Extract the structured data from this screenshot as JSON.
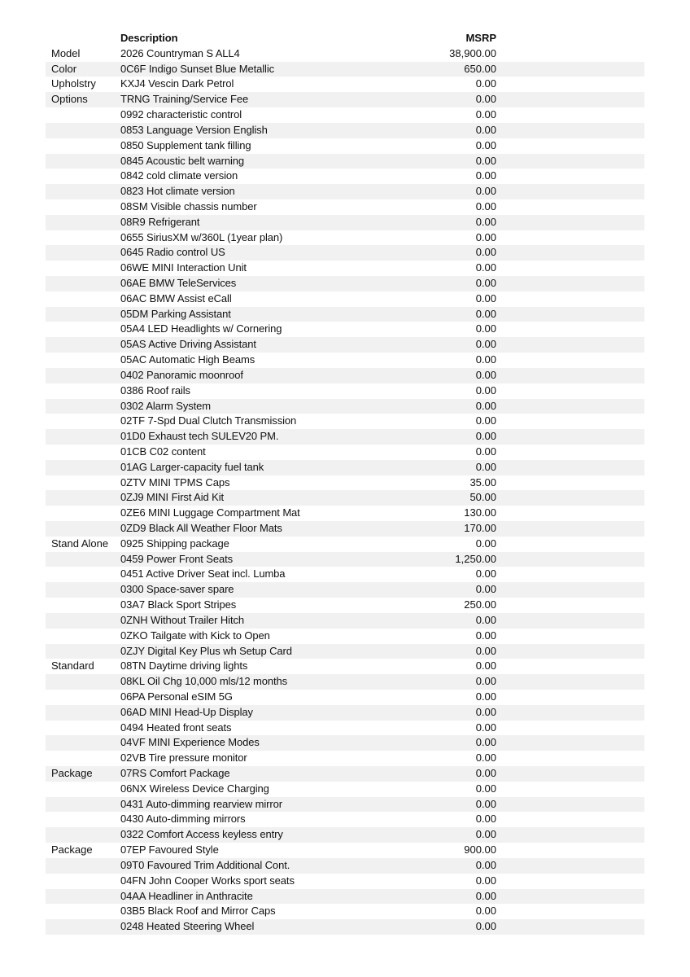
{
  "header": {
    "description": "Description",
    "msrp": "MSRP"
  },
  "rows": [
    {
      "label": "Model",
      "description": "2026 Countryman S ALL4",
      "msrp": "38,900.00"
    },
    {
      "label": "Color",
      "description": "0C6F Indigo Sunset Blue Metallic",
      "msrp": "650.00"
    },
    {
      "label": "Upholstry",
      "description": "KXJ4 Vescin Dark Petrol",
      "msrp": "0.00"
    },
    {
      "label": "Options",
      "description": "TRNG Training/Service Fee",
      "msrp": "0.00"
    },
    {
      "label": "",
      "description": "0992 characteristic control",
      "msrp": "0.00"
    },
    {
      "label": "",
      "description": "0853 Language Version English",
      "msrp": "0.00"
    },
    {
      "label": "",
      "description": "0850 Supplement tank filling",
      "msrp": "0.00"
    },
    {
      "label": "",
      "description": "0845 Acoustic belt warning",
      "msrp": "0.00"
    },
    {
      "label": "",
      "description": "0842 cold climate version",
      "msrp": "0.00"
    },
    {
      "label": "",
      "description": "0823 Hot climate version",
      "msrp": "0.00"
    },
    {
      "label": "",
      "description": "08SM Visible chassis number",
      "msrp": "0.00"
    },
    {
      "label": "",
      "description": "08R9 Refrigerant",
      "msrp": "0.00"
    },
    {
      "label": "",
      "description": "0655 SiriusXM w/360L (1year plan)",
      "msrp": "0.00"
    },
    {
      "label": "",
      "description": "0645 Radio control US",
      "msrp": "0.00"
    },
    {
      "label": "",
      "description": "06WE MINI Interaction Unit",
      "msrp": "0.00"
    },
    {
      "label": "",
      "description": "06AE BMW TeleServices",
      "msrp": "0.00"
    },
    {
      "label": "",
      "description": "06AC BMW Assist eCall",
      "msrp": "0.00"
    },
    {
      "label": "",
      "description": "05DM Parking Assistant",
      "msrp": "0.00"
    },
    {
      "label": "",
      "description": "05A4 LED Headlights w/ Cornering",
      "msrp": "0.00"
    },
    {
      "label": "",
      "description": "05AS Active Driving Assistant",
      "msrp": "0.00"
    },
    {
      "label": "",
      "description": "05AC Automatic High Beams",
      "msrp": "0.00"
    },
    {
      "label": "",
      "description": "0402 Panoramic moonroof",
      "msrp": "0.00"
    },
    {
      "label": "",
      "description": "0386 Roof rails",
      "msrp": "0.00"
    },
    {
      "label": "",
      "description": "0302 Alarm System",
      "msrp": "0.00"
    },
    {
      "label": "",
      "description": "02TF 7-Spd Dual Clutch Transmission",
      "msrp": "0.00"
    },
    {
      "label": "",
      "description": "01D0 Exhaust tech SULEV20 PM.",
      "msrp": "0.00"
    },
    {
      "label": "",
      "description": "01CB C02 content",
      "msrp": "0.00"
    },
    {
      "label": "",
      "description": "01AG Larger-capacity fuel tank",
      "msrp": "0.00"
    },
    {
      "label": "",
      "description": "0ZTV MINI TPMS Caps",
      "msrp": "35.00"
    },
    {
      "label": "",
      "description": "0ZJ9 MINI First Aid Kit",
      "msrp": "50.00"
    },
    {
      "label": "",
      "description": "0ZE6 MINI Luggage Compartment Mat",
      "msrp": "130.00"
    },
    {
      "label": "",
      "description": "0ZD9 Black All Weather Floor Mats",
      "msrp": "170.00"
    },
    {
      "label": "Stand Alone",
      "description": "0925 Shipping package",
      "msrp": "0.00"
    },
    {
      "label": "",
      "description": "0459 Power Front Seats",
      "msrp": "1,250.00"
    },
    {
      "label": "",
      "description": "0451 Active Driver Seat incl. Lumba",
      "msrp": "0.00"
    },
    {
      "label": "",
      "description": "0300 Space-saver spare",
      "msrp": "0.00"
    },
    {
      "label": "",
      "description": "03A7 Black Sport Stripes",
      "msrp": "250.00"
    },
    {
      "label": "",
      "description": "0ZNH Without Trailer Hitch",
      "msrp": "0.00"
    },
    {
      "label": "",
      "description": "0ZKO Tailgate with Kick to Open",
      "msrp": "0.00"
    },
    {
      "label": "",
      "description": "0ZJY Digital Key Plus wh Setup Card",
      "msrp": "0.00"
    },
    {
      "label": "Standard",
      "description": "08TN Daytime driving lights",
      "msrp": "0.00"
    },
    {
      "label": "",
      "description": "08KL Oil Chg 10,000 mls/12 months",
      "msrp": "0.00"
    },
    {
      "label": "",
      "description": "06PA Personal eSIM 5G",
      "msrp": "0.00"
    },
    {
      "label": "",
      "description": "06AD MINI Head-Up Display",
      "msrp": "0.00"
    },
    {
      "label": "",
      "description": "0494 Heated front seats",
      "msrp": "0.00"
    },
    {
      "label": "",
      "description": "04VF MINI Experience Modes",
      "msrp": "0.00"
    },
    {
      "label": "",
      "description": "02VB Tire pressure monitor",
      "msrp": "0.00"
    },
    {
      "label": "Package",
      "description": "07RS Comfort Package",
      "msrp": "0.00"
    },
    {
      "label": "",
      "description": "06NX Wireless Device Charging",
      "msrp": "0.00"
    },
    {
      "label": "",
      "description": "0431 Auto-dimming rearview mirror",
      "msrp": "0.00"
    },
    {
      "label": "",
      "description": "0430 Auto-dimming mirrors",
      "msrp": "0.00"
    },
    {
      "label": "",
      "description": "0322 Comfort Access keyless entry",
      "msrp": "0.00"
    },
    {
      "label": "Package",
      "description": "07EP Favoured Style",
      "msrp": "900.00"
    },
    {
      "label": "",
      "description": "09T0 Favoured Trim Additional Cont.",
      "msrp": "0.00"
    },
    {
      "label": "",
      "description": "04FN John Cooper Works sport seats",
      "msrp": "0.00"
    },
    {
      "label": "",
      "description": "04AA Headliner in Anthracite",
      "msrp": "0.00"
    },
    {
      "label": "",
      "description": "03B5 Black Roof and Mirror Caps",
      "msrp": "0.00"
    },
    {
      "label": "",
      "description": "0248 Heated Steering Wheel",
      "msrp": "0.00"
    }
  ],
  "colors": {
    "stripe": "#f1f1f1",
    "text": "#111111"
  }
}
